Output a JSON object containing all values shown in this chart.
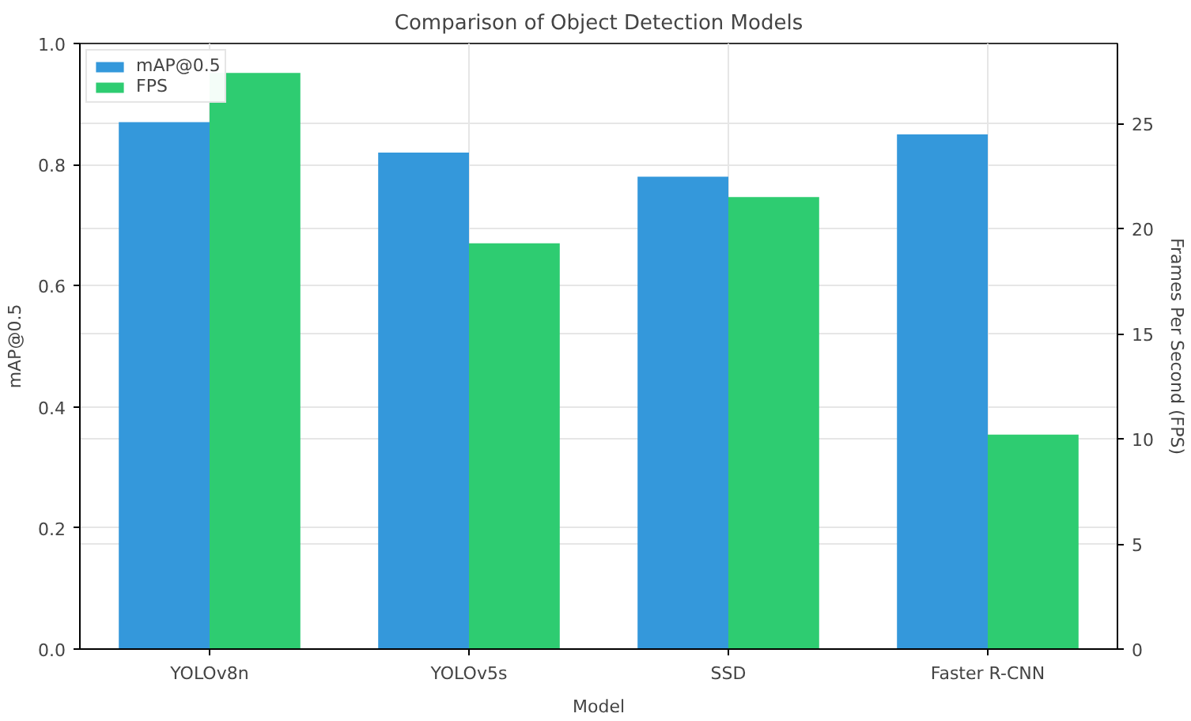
{
  "chart_data": {
    "type": "bar",
    "title": "Comparison of Object Detection Models",
    "xlabel": "Model",
    "ylabel": "mAP@0.5",
    "y2label": "Frames Per Second (FPS)",
    "categories": [
      "YOLOv8n",
      "YOLOv5s",
      "SSD",
      "Faster R-CNN"
    ],
    "series": [
      {
        "name": "mAP@0.5",
        "color": "#3498db",
        "values": [
          0.87,
          0.82,
          0.78,
          0.85
        ]
      },
      {
        "name": "FPS",
        "color": "#2ecc71",
        "values": [
          27.4,
          19.3,
          21.5,
          10.2
        ],
        "axis": "y2"
      }
    ],
    "ylim": [
      0,
      1.0
    ],
    "yticks": [
      {
        "value": 0,
        "label": "0.0"
      },
      0.2,
      0.4,
      0.6,
      0.8,
      {
        "value": 1,
        "label": "1.0"
      }
    ],
    "y2lim": [
      0,
      28.8
    ],
    "y2ticks": [
      0,
      5,
      10,
      15,
      20,
      25
    ],
    "grid": true,
    "legend": "top left"
  }
}
